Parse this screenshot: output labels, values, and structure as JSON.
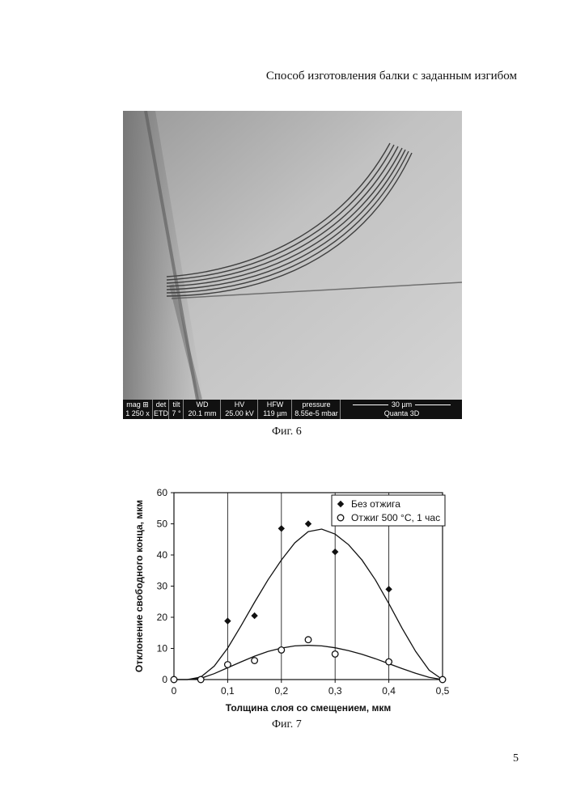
{
  "header": {
    "title": "Способ изготовления балки с заданным изгибом"
  },
  "figure6": {
    "caption": "Фиг. 6",
    "info_bar": [
      {
        "label": "mag ⊞",
        "value": "1 250 x"
      },
      {
        "label": "det",
        "value": "ETD"
      },
      {
        "label": "tilt",
        "value": "7 °"
      },
      {
        "label": "WD",
        "value": "20.1 mm"
      },
      {
        "label": "HV",
        "value": "25.00 kV"
      },
      {
        "label": "HFW",
        "value": "119 µm"
      },
      {
        "label": "pressure",
        "value": "8.55e-5 mbar"
      }
    ],
    "scale_label": "30 µm",
    "instrument": "Quanta 3D"
  },
  "figure7": {
    "caption": "Фиг. 7",
    "chart_data": {
      "type": "scatter",
      "xlabel": "Толщина слоя со смещением, мкм",
      "ylabel": "Отклонение свободного конца, мкм",
      "xlim": [
        0,
        0.5
      ],
      "ylim": [
        0,
        60
      ],
      "x_ticks": [
        "0",
        "0,1",
        "0,2",
        "0,3",
        "0,4",
        "0,5"
      ],
      "y_ticks": [
        "0",
        "10",
        "20",
        "30",
        "40",
        "50",
        "60"
      ],
      "grid": "vertical",
      "legend_position": "top-right",
      "series": [
        {
          "name": "Без отжига",
          "marker": "filled-diamond",
          "x": [
            0.1,
            0.15,
            0.2,
            0.25,
            0.3,
            0.4
          ],
          "y": [
            18.8,
            20.5,
            48.5,
            50,
            41,
            29
          ],
          "trend": {
            "x": [
              0,
              0.025,
              0.05,
              0.075,
              0.1,
              0.125,
              0.15,
              0.175,
              0.2,
              0.225,
              0.25,
              0.275,
              0.3,
              0.325,
              0.35,
              0.375,
              0.4,
              0.425,
              0.45,
              0.475,
              0.5
            ],
            "y": [
              0,
              0,
              0.8,
              4.3,
              10.1,
              17.3,
              24.8,
              32,
              38.4,
              43.9,
              47.5,
              48.3,
              46.7,
              43.3,
              38.4,
              32,
              24.4,
              16.4,
              9,
              3,
              0
            ]
          }
        },
        {
          "name": "Отжиг 500 °С, 1 час",
          "marker": "open-circle",
          "x": [
            0,
            0.05,
            0.1,
            0.15,
            0.2,
            0.25,
            0.3,
            0.4,
            0.5
          ],
          "y": [
            0,
            0,
            4.8,
            6.1,
            9.5,
            12.8,
            8.2,
            5.7,
            0
          ],
          "trend": {
            "x": [
              0,
              0.025,
              0.05,
              0.075,
              0.1,
              0.125,
              0.15,
              0.175,
              0.2,
              0.225,
              0.25,
              0.275,
              0.3,
              0.325,
              0.35,
              0.375,
              0.4,
              0.425,
              0.45,
              0.475,
              0.5
            ],
            "y": [
              0,
              0,
              0.4,
              1.9,
              3.8,
              5.7,
              7.5,
              9,
              10.1,
              10.8,
              11,
              10.8,
              10.2,
              9.3,
              8.1,
              6.7,
              5.1,
              3.5,
              2,
              0.7,
              0
            ]
          }
        }
      ]
    }
  },
  "page_number": "5"
}
